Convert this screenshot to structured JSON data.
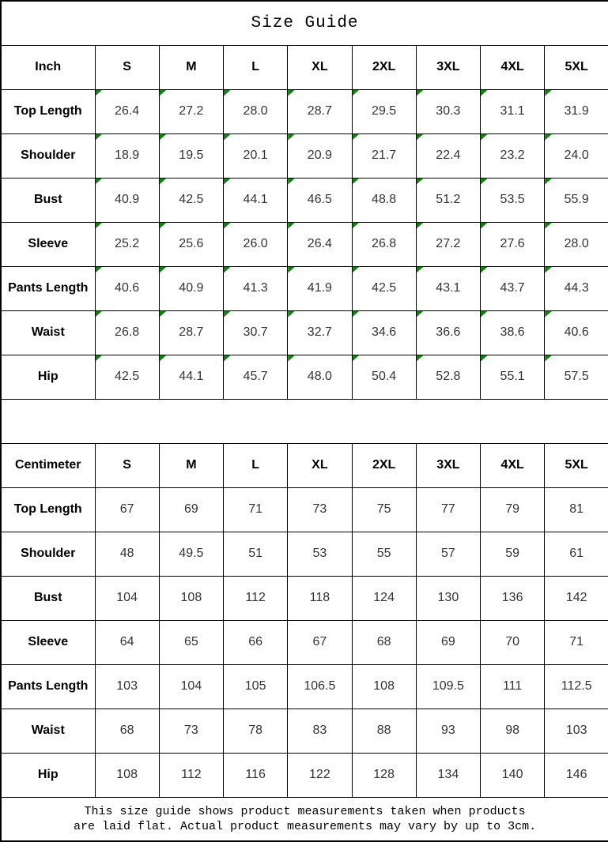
{
  "title": "Size Guide",
  "colors": {
    "border": "#000000",
    "marker_green": "#118011",
    "label_text": "#000000",
    "value_text": "#333333"
  },
  "tables": [
    {
      "id": "inch",
      "unit_label": "Inch",
      "sizes": [
        "S",
        "M",
        "L",
        "XL",
        "2XL",
        "3XL",
        "4XL",
        "5XL"
      ],
      "cell_markers": true,
      "rows": [
        {
          "label": "Top Length",
          "values": [
            "26.4",
            "27.2",
            "28.0",
            "28.7",
            "29.5",
            "30.3",
            "31.1",
            "31.9"
          ]
        },
        {
          "label": "Shoulder",
          "values": [
            "18.9",
            "19.5",
            "20.1",
            "20.9",
            "21.7",
            "22.4",
            "23.2",
            "24.0"
          ]
        },
        {
          "label": "Bust",
          "values": [
            "40.9",
            "42.5",
            "44.1",
            "46.5",
            "48.8",
            "51.2",
            "53.5",
            "55.9"
          ]
        },
        {
          "label": "Sleeve",
          "values": [
            "25.2",
            "25.6",
            "26.0",
            "26.4",
            "26.8",
            "27.2",
            "27.6",
            "28.0"
          ]
        },
        {
          "label": "Pants Length",
          "values": [
            "40.6",
            "40.9",
            "41.3",
            "41.9",
            "42.5",
            "43.1",
            "43.7",
            "44.3"
          ]
        },
        {
          "label": "Waist",
          "values": [
            "26.8",
            "28.7",
            "30.7",
            "32.7",
            "34.6",
            "36.6",
            "38.6",
            "40.6"
          ]
        },
        {
          "label": "Hip",
          "values": [
            "42.5",
            "44.1",
            "45.7",
            "48.0",
            "50.4",
            "52.8",
            "55.1",
            "57.5"
          ]
        }
      ]
    },
    {
      "id": "centimeter",
      "unit_label": "Centimeter",
      "sizes": [
        "S",
        "M",
        "L",
        "XL",
        "2XL",
        "3XL",
        "4XL",
        "5XL"
      ],
      "cell_markers": false,
      "rows": [
        {
          "label": "Top Length",
          "values": [
            "67",
            "69",
            "71",
            "73",
            "75",
            "77",
            "79",
            "81"
          ]
        },
        {
          "label": "Shoulder",
          "values": [
            "48",
            "49.5",
            "51",
            "53",
            "55",
            "57",
            "59",
            "61"
          ]
        },
        {
          "label": "Bust",
          "values": [
            "104",
            "108",
            "112",
            "118",
            "124",
            "130",
            "136",
            "142"
          ]
        },
        {
          "label": "Sleeve",
          "values": [
            "64",
            "65",
            "66",
            "67",
            "68",
            "69",
            "70",
            "71"
          ]
        },
        {
          "label": "Pants Length",
          "values": [
            "103",
            "104",
            "105",
            "106.5",
            "108",
            "109.5",
            "111",
            "112.5"
          ]
        },
        {
          "label": "Waist",
          "values": [
            "68",
            "73",
            "78",
            "83",
            "88",
            "93",
            "98",
            "103"
          ]
        },
        {
          "label": "Hip",
          "values": [
            "108",
            "112",
            "116",
            "122",
            "128",
            "134",
            "140",
            "146"
          ]
        }
      ]
    }
  ],
  "footer": {
    "line1": "This size guide shows product measurements taken when products",
    "line2": "are laid flat. Actual product measurements may vary by up to 3cm."
  }
}
